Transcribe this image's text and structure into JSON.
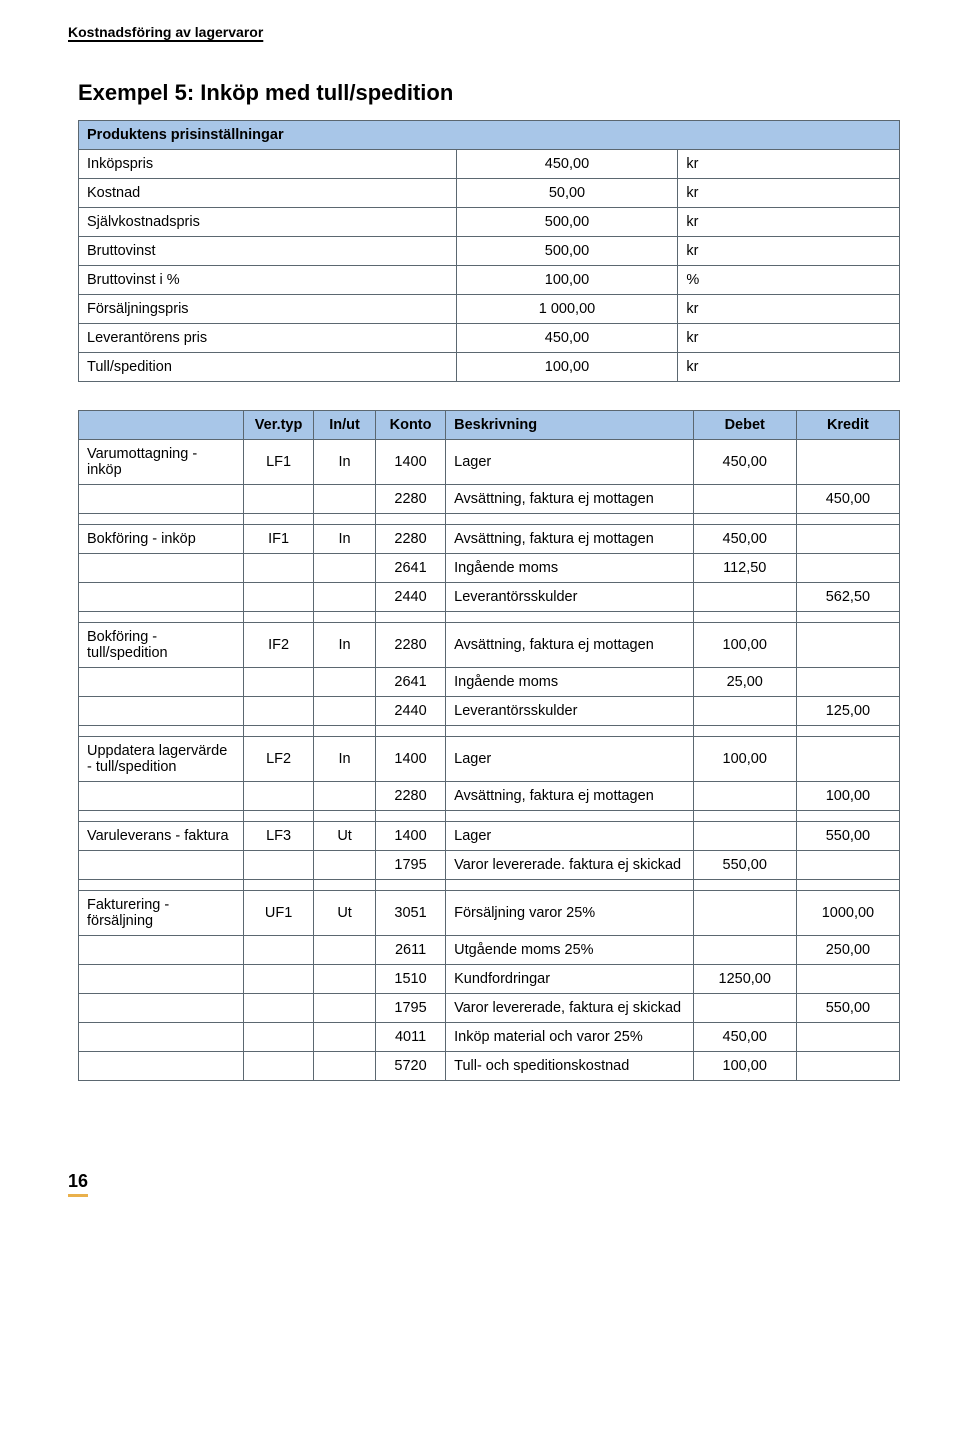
{
  "page": {
    "running_header": "Kostnadsföring av lagervaror",
    "title": "Exempel 5: Inköp med tull/spedition",
    "page_number": "16"
  },
  "price_table": {
    "header": "Produktens prisinställningar",
    "rows": [
      {
        "label": "Inköpspris",
        "value": "450,00",
        "unit": "kr"
      },
      {
        "label": "Kostnad",
        "value": "50,00",
        "unit": "kr"
      },
      {
        "label": "Självkostnadspris",
        "value": "500,00",
        "unit": "kr"
      },
      {
        "label": "Bruttovinst",
        "value": "500,00",
        "unit": "kr"
      },
      {
        "label": "Bruttovinst i %",
        "value": "100,00",
        "unit": "%"
      },
      {
        "label": "Försäljningspris",
        "value": "1 000,00",
        "unit": "kr"
      },
      {
        "label": "Leverantörens pris",
        "value": "450,00",
        "unit": "kr"
      },
      {
        "label": "Tull/spedition",
        "value": "100,00",
        "unit": "kr"
      }
    ]
  },
  "ledger": {
    "headers": {
      "cat": "",
      "ver": "Ver.typ",
      "io": "In/ut",
      "kto": "Konto",
      "desc": "Beskrivning",
      "deb": "Debet",
      "cred": "Kredit"
    },
    "rows": [
      {
        "cat": "Varumottagning - inköp",
        "ver": "LF1",
        "io": "In",
        "kto": "1400",
        "desc": "Lager",
        "deb": "450,00",
        "cred": ""
      },
      {
        "cat": "",
        "ver": "",
        "io": "",
        "kto": "2280",
        "desc": "Avsättning, faktura ej mottagen",
        "deb": "",
        "cred": "450,00"
      },
      {
        "cat": "",
        "ver": "",
        "io": "",
        "kto": "",
        "desc": "",
        "deb": "",
        "cred": ""
      },
      {
        "cat": "Bokföring - inköp",
        "ver": "IF1",
        "io": "In",
        "kto": "2280",
        "desc": "Avsättning, faktura ej mottagen",
        "deb": "450,00",
        "cred": ""
      },
      {
        "cat": "",
        "ver": "",
        "io": "",
        "kto": "2641",
        "desc": "Ingående moms",
        "deb": "112,50",
        "cred": ""
      },
      {
        "cat": "",
        "ver": "",
        "io": "",
        "kto": "2440",
        "desc": "Leverantörsskulder",
        "deb": "",
        "cred": "562,50"
      },
      {
        "cat": "",
        "ver": "",
        "io": "",
        "kto": "",
        "desc": "",
        "deb": "",
        "cred": ""
      },
      {
        "cat": "Bokföring - tull/spedition",
        "ver": "IF2",
        "io": "In",
        "kto": "2280",
        "desc": "Avsättning, faktura ej mottagen",
        "deb": "100,00",
        "cred": ""
      },
      {
        "cat": "",
        "ver": "",
        "io": "",
        "kto": "2641",
        "desc": "Ingående moms",
        "deb": "25,00",
        "cred": ""
      },
      {
        "cat": "",
        "ver": "",
        "io": "",
        "kto": "2440",
        "desc": "Leverantörsskulder",
        "deb": "",
        "cred": "125,00"
      },
      {
        "cat": "",
        "ver": "",
        "io": "",
        "kto": "",
        "desc": "",
        "deb": "",
        "cred": ""
      },
      {
        "cat": "Uppdatera lagervärde - tull/spedition",
        "ver": "LF2",
        "io": "In",
        "kto": "1400",
        "desc": "Lager",
        "deb": "100,00",
        "cred": ""
      },
      {
        "cat": "",
        "ver": "",
        "io": "",
        "kto": "2280",
        "desc": "Avsättning, faktura ej mottagen",
        "deb": "",
        "cred": "100,00"
      },
      {
        "cat": "",
        "ver": "",
        "io": "",
        "kto": "",
        "desc": "",
        "deb": "",
        "cred": ""
      },
      {
        "cat": "Varuleverans - faktura",
        "ver": "LF3",
        "io": "Ut",
        "kto": "1400",
        "desc": "Lager",
        "deb": "",
        "cred": "550,00"
      },
      {
        "cat": "",
        "ver": "",
        "io": "",
        "kto": "1795",
        "desc": "Varor levererade. faktura ej skickad",
        "deb": "550,00",
        "cred": ""
      },
      {
        "cat": "",
        "ver": "",
        "io": "",
        "kto": "",
        "desc": "",
        "deb": "",
        "cred": ""
      },
      {
        "cat": "Fakturering - försäljning",
        "ver": "UF1",
        "io": "Ut",
        "kto": "3051",
        "desc": "Försäljning varor 25%",
        "deb": "",
        "cred": "1000,00"
      },
      {
        "cat": "",
        "ver": "",
        "io": "",
        "kto": "2611",
        "desc": "Utgående moms 25%",
        "deb": "",
        "cred": "250,00"
      },
      {
        "cat": "",
        "ver": "",
        "io": "",
        "kto": "1510",
        "desc": "Kundfordringar",
        "deb": "1250,00",
        "cred": ""
      },
      {
        "cat": "",
        "ver": "",
        "io": "",
        "kto": "1795",
        "desc": "Varor levererade, faktura ej skickad",
        "deb": "",
        "cred": "550,00"
      },
      {
        "cat": "",
        "ver": "",
        "io": "",
        "kto": "4011",
        "desc": "Inköp material och varor 25%",
        "deb": "450,00",
        "cred": ""
      },
      {
        "cat": "",
        "ver": "",
        "io": "",
        "kto": "5720",
        "desc": "Tull- och speditionskostnad",
        "deb": "100,00",
        "cred": ""
      }
    ]
  },
  "style": {
    "header_bg": "#a8c6e8",
    "border_color": "#5b6770",
    "accent_color": "#e9b04b"
  }
}
